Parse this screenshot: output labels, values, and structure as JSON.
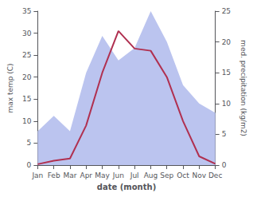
{
  "chart_data": {
    "type": "line",
    "xlabel": "date (month)",
    "ylabel": "max temp (C)",
    "y2label": "med. precipitation (kg/m2)",
    "categories": [
      "Jan",
      "Feb",
      "Mar",
      "Apr",
      "May",
      "Jun",
      "Jul",
      "Aug",
      "Sep",
      "Oct",
      "Nov",
      "Dec"
    ],
    "series": [
      {
        "type": "area",
        "axis": "y2",
        "color": "#bbc4ef",
        "values": [
          5.5,
          8.0,
          5.5,
          15.0,
          21.0,
          17.0,
          19.0,
          25.0,
          20.0,
          13.0,
          10.0,
          8.5
        ]
      },
      {
        "type": "line",
        "color": "#b03050",
        "values": [
          0.2,
          1.0,
          1.5,
          9.0,
          21.0,
          30.5,
          26.5,
          26.0,
          20.0,
          10.0,
          2.0,
          0.3
        ]
      }
    ],
    "ylim": [
      0,
      35
    ],
    "yticks": [
      0,
      5,
      10,
      15,
      20,
      25,
      30,
      35
    ],
    "y2lim": [
      0,
      25
    ],
    "y2ticks": [
      0,
      5,
      10,
      15,
      20,
      25
    ],
    "grid": false
  }
}
